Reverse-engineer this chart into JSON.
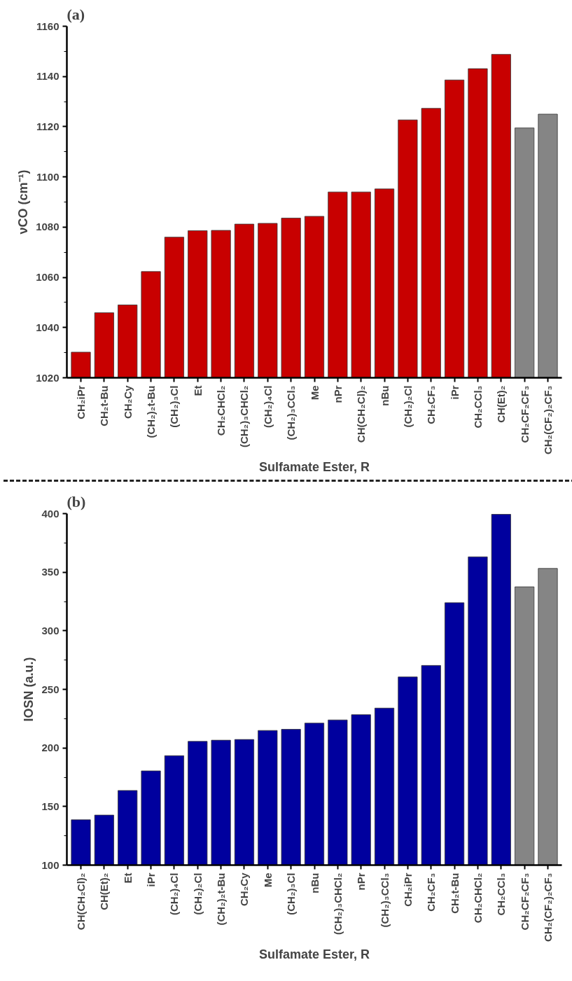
{
  "chart_data": [
    {
      "type": "bar",
      "title": "(a)",
      "xlabel": "Sulfamate Ester, R",
      "ylabel": "νCO (cm⁻¹)",
      "categories": [
        "CH₂iPr",
        "CH₂t-Bu",
        "CH₂Cy",
        "(CH₂)₂t-Bu",
        "(CH₂)₃Cl",
        "Et",
        "CH₂CHCl₂",
        "(CH₂)₃CHCl₂",
        "(CH₂)₄Cl",
        "(CH₂)₃CCl₃",
        "Me",
        "nPr",
        "CH(CH₂Cl)₂",
        "nBu",
        "(CH₂)₂Cl",
        "CH₂CF₃",
        "iPr",
        "CH₂CCl₃",
        "CH(Et)₂",
        "CH₂CF₂CF₃",
        "CH₂(CF₂)₂CF₃"
      ],
      "values": [
        1030.2,
        1045.9,
        1049,
        1062.3,
        1076,
        1078.6,
        1078.7,
        1081.2,
        1081.5,
        1083.6,
        1084.3,
        1094,
        1094,
        1095.2,
        1122.7,
        1127.3,
        1138.6,
        1143.1,
        1148.8,
        1119.5,
        1125
      ],
      "colors": [
        "#c80000",
        "#c80000",
        "#c80000",
        "#c80000",
        "#c80000",
        "#c80000",
        "#c80000",
        "#c80000",
        "#c80000",
        "#c80000",
        "#c80000",
        "#c80000",
        "#c80000",
        "#c80000",
        "#c80000",
        "#c80000",
        "#c80000",
        "#c80000",
        "#c80000",
        "#858585",
        "#858585"
      ],
      "ylim": [
        1020,
        1160
      ],
      "yticks": [
        1020,
        {
          "value": 1030,
          "label": null
        },
        1040,
        {
          "value": 1050,
          "label": null
        },
        1060,
        {
          "value": 1070,
          "label": null
        },
        1080,
        {
          "value": 1090,
          "label": null
        },
        1100,
        {
          "value": 1110,
          "label": null
        },
        1120,
        {
          "value": 1130,
          "label": null
        },
        1140,
        {
          "value": 1150,
          "label": null
        },
        1160
      ],
      "grid": false,
      "legend": false
    },
    {
      "type": "bar",
      "title": "(b)",
      "xlabel": "Sulfamate Ester, R",
      "ylabel": "IOSN (a.u.)",
      "categories": [
        "CH(CH₂Cl)₂",
        "CH(Et)₂",
        "Et",
        "iPr",
        "(CH₂)₄Cl",
        "(CH₂)₂Cl",
        "(CH₂)₂t-Bu",
        "CH₂Cy",
        "Me",
        "(CH₂)₃Cl",
        "nBu",
        "(CH₂)₃CHCl₂",
        "nPr",
        "(CH₂)₃CCl₃",
        "CH₂iPr",
        "CH₂CF₃",
        "CH₂t-Bu",
        "CH₂CHCl₂",
        "CH₂CCl₃",
        "CH₂CF₂CF₃",
        "CH₂(CF₂)₂CF₃"
      ],
      "values": [
        138.7,
        142.7,
        163.7,
        180.4,
        193.4,
        205.6,
        206.6,
        207.2,
        214.9,
        215.9,
        221.2,
        223.9,
        228.4,
        234,
        260.6,
        270.4,
        323.9,
        363.1,
        399.4,
        337.5,
        353.2
      ],
      "colors": [
        "#00009e",
        "#00009e",
        "#00009e",
        "#00009e",
        "#00009e",
        "#00009e",
        "#00009e",
        "#00009e",
        "#00009e",
        "#00009e",
        "#00009e",
        "#00009e",
        "#00009e",
        "#00009e",
        "#00009e",
        "#00009e",
        "#00009e",
        "#00009e",
        "#00009e",
        "#858585",
        "#858585"
      ],
      "ylim": [
        100,
        400
      ],
      "yticks": [
        100,
        {
          "value": 125,
          "label": null
        },
        150,
        {
          "value": 175,
          "label": null
        },
        200,
        {
          "value": 225,
          "label": null
        },
        250,
        {
          "value": 275,
          "label": null
        },
        300,
        {
          "value": 325,
          "label": null
        },
        350,
        {
          "value": 375,
          "label": null
        },
        400
      ],
      "grid": false,
      "legend": false
    }
  ]
}
